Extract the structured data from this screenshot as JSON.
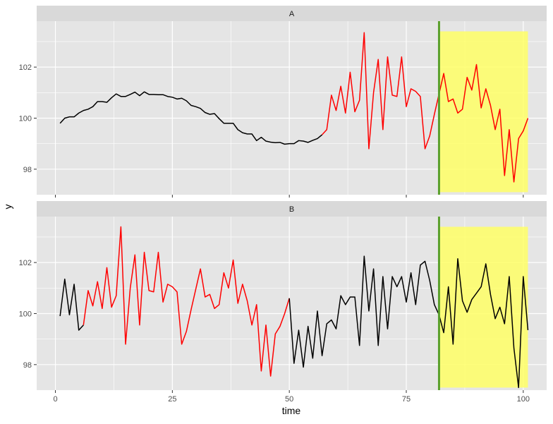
{
  "chart_data": {
    "type": "line",
    "xlabel": "time",
    "ylabel": "y",
    "xlim": [
      -4,
      105
    ],
    "ylim": [
      97.0,
      103.8
    ],
    "x_ticks": [
      0,
      25,
      50,
      75,
      100
    ],
    "x_tick_labels": [
      "0",
      "25",
      "50",
      "75",
      "100"
    ],
    "y_ticks": [
      98,
      100,
      102
    ],
    "y_tick_labels": [
      "98",
      "100",
      "102"
    ],
    "grid": true,
    "legend": "none",
    "colors": {
      "panel_bg": "#e5e5e5",
      "strip_bg": "#d9d9d9",
      "grid": "#ffffff",
      "line_default": "#000000",
      "line_highlight": "#ff0000",
      "vline": "#5aa02c",
      "rect_fill": "#ffff66"
    },
    "vline_x": 82,
    "highlight_rect": {
      "x0": 82,
      "x1": 101,
      "y0": 97.1,
      "y1": 103.4
    },
    "panels": [
      {
        "label": "A",
        "x": [
          1,
          2,
          3,
          4,
          5,
          6,
          7,
          8,
          9,
          10,
          11,
          12,
          13,
          14,
          15,
          16,
          17,
          18,
          19,
          20,
          21,
          22,
          23,
          24,
          25,
          26,
          27,
          28,
          29,
          30,
          31,
          32,
          33,
          34,
          35,
          36,
          37,
          38,
          39,
          40,
          41,
          42,
          43,
          44,
          45,
          46,
          47,
          48,
          49,
          50,
          51,
          52,
          53,
          54,
          55,
          56,
          57,
          58,
          59,
          60,
          61,
          62,
          63,
          64,
          65,
          66,
          67,
          68,
          69,
          70,
          71,
          72,
          73,
          74,
          75,
          76,
          77,
          78,
          79,
          80,
          81,
          82,
          83,
          84,
          85,
          86,
          87,
          88,
          89,
          90,
          91,
          92,
          93,
          94,
          95,
          96,
          97,
          98,
          99,
          100,
          101
        ],
        "y": [
          99.8,
          100.0,
          100.05,
          100.05,
          100.2,
          100.3,
          100.35,
          100.45,
          100.65,
          100.65,
          100.62,
          100.8,
          100.95,
          100.85,
          100.85,
          100.93,
          101.02,
          100.88,
          101.03,
          100.93,
          100.93,
          100.92,
          100.92,
          100.85,
          100.82,
          100.75,
          100.78,
          100.68,
          100.5,
          100.45,
          100.38,
          100.22,
          100.15,
          100.18,
          99.98,
          99.8,
          99.8,
          99.8,
          99.55,
          99.43,
          99.38,
          99.38,
          99.12,
          99.25,
          99.1,
          99.06,
          99.04,
          99.05,
          98.98,
          99.0,
          99.0,
          99.12,
          99.1,
          99.05,
          99.13,
          99.2,
          99.35,
          99.55,
          100.9,
          100.3,
          101.25,
          100.2,
          101.8,
          100.25,
          100.7,
          103.35,
          98.8,
          101.0,
          102.3,
          99.55,
          102.4,
          100.9,
          100.85,
          102.4,
          100.45,
          101.15,
          101.05,
          100.85,
          98.8,
          99.3,
          100.15,
          100.95,
          101.75,
          100.65,
          100.75,
          100.2,
          100.35,
          101.6,
          101.1,
          102.1,
          100.4,
          101.15,
          100.5,
          99.55,
          100.35,
          97.75,
          99.55,
          97.5,
          99.2,
          99.5,
          100.0
        ],
        "segments": [
          {
            "color": "black",
            "from_index": 0,
            "to_index": 56
          },
          {
            "color": "red",
            "from_index": 56,
            "to_index": 100
          }
        ]
      },
      {
        "label": "B",
        "x": [
          1,
          2,
          3,
          4,
          5,
          6,
          7,
          8,
          9,
          10,
          11,
          12,
          13,
          14,
          15,
          16,
          17,
          18,
          19,
          20,
          21,
          22,
          23,
          24,
          25,
          26,
          27,
          28,
          29,
          30,
          31,
          32,
          33,
          34,
          35,
          36,
          37,
          38,
          39,
          40,
          41,
          42,
          43,
          44,
          45,
          46,
          47,
          48,
          49,
          50,
          51,
          52,
          53,
          54,
          55,
          56,
          57,
          58,
          59,
          60,
          61,
          62,
          63,
          64,
          65,
          66,
          67,
          68,
          69,
          70,
          71,
          72,
          73,
          74,
          75,
          76,
          77,
          78,
          79,
          80,
          81,
          82,
          83,
          84,
          85,
          86,
          87,
          88,
          89,
          90,
          91,
          92,
          93,
          94,
          95,
          96,
          97,
          98,
          99,
          100,
          101
        ],
        "y": [
          99.9,
          101.35,
          99.95,
          101.15,
          99.35,
          99.55,
          100.9,
          100.3,
          101.25,
          100.2,
          101.8,
          100.25,
          100.7,
          103.4,
          98.8,
          101.0,
          102.3,
          99.55,
          102.4,
          100.9,
          100.85,
          102.4,
          100.45,
          101.15,
          101.05,
          100.85,
          98.8,
          99.3,
          100.15,
          100.95,
          101.75,
          100.65,
          100.75,
          100.2,
          100.35,
          101.6,
          101.0,
          102.1,
          100.4,
          101.15,
          100.5,
          99.55,
          100.35,
          97.75,
          99.55,
          97.55,
          99.2,
          99.5,
          100.0,
          100.6,
          98.05,
          99.35,
          97.9,
          99.5,
          98.25,
          100.1,
          98.35,
          99.6,
          99.75,
          99.4,
          100.7,
          100.35,
          100.65,
          100.65,
          98.75,
          102.25,
          100.1,
          101.75,
          98.75,
          101.45,
          99.4,
          101.45,
          101.05,
          101.45,
          100.45,
          101.6,
          100.35,
          101.9,
          102.05,
          101.3,
          100.35,
          99.95,
          99.25,
          101.05,
          98.8,
          102.15,
          100.5,
          100.05,
          100.55,
          100.8,
          101.05,
          101.95,
          100.75,
          99.8,
          100.25,
          99.6,
          101.45,
          98.65,
          97.1,
          101.45,
          99.35
        ],
        "segments": [
          {
            "color": "black",
            "from_index": 0,
            "to_index": 5
          },
          {
            "color": "red",
            "from_index": 5,
            "to_index": 49
          },
          {
            "color": "black",
            "from_index": 49,
            "to_index": 100
          }
        ]
      }
    ]
  }
}
